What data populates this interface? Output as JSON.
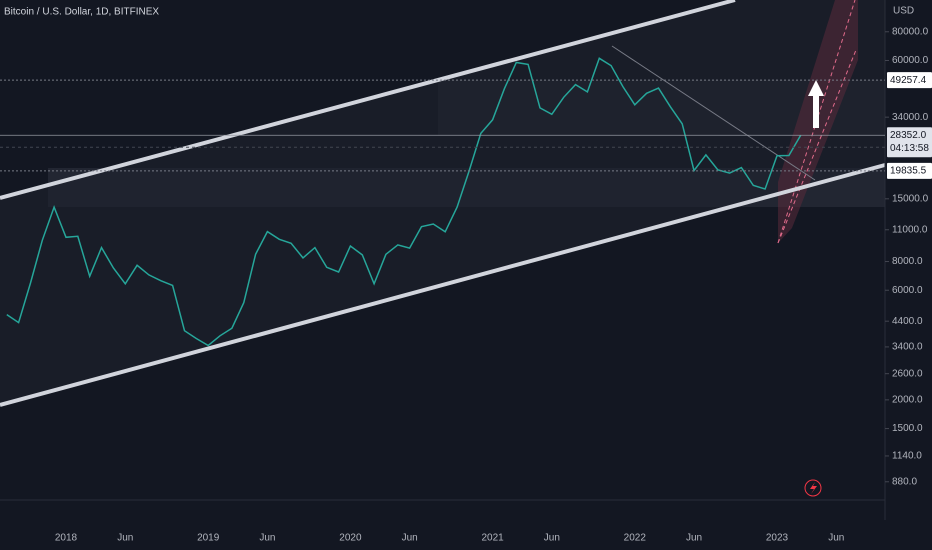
{
  "chart_data": {
    "type": "line",
    "title": "Bitcoin / U.S. Dollar, 1D, BITFINEX",
    "unit": "USD",
    "log_scale": true,
    "grid": false,
    "color": "#26a69a",
    "categories": [
      null,
      null,
      null,
      null,
      null,
      "2018",
      null,
      null,
      null,
      null,
      "Jun",
      null,
      null,
      null,
      null,
      null,
      null,
      "2019",
      null,
      null,
      null,
      null,
      "Jun",
      null,
      null,
      null,
      null,
      null,
      null,
      "2020",
      null,
      null,
      null,
      null,
      "Jun",
      null,
      null,
      null,
      null,
      null,
      null,
      "2021",
      null,
      null,
      null,
      null,
      "Jun",
      null,
      null,
      null,
      null,
      null,
      null,
      "2022",
      null,
      null,
      null,
      null,
      "Jun",
      null,
      null,
      null,
      null,
      null,
      null,
      "2023",
      null,
      null,
      null,
      null,
      "Jun"
    ],
    "values": [
      4700,
      4340,
      6450,
      9900,
      13800,
      10200,
      10300,
      6900,
      9200,
      7500,
      6400,
      7700,
      7000,
      6600,
      6300,
      4000,
      3700,
      3450,
      3800,
      4100,
      5300,
      8600,
      10800,
      10000,
      9600,
      8300,
      9200,
      7550,
      7200,
      9350,
      8550,
      6400,
      8600,
      9450,
      9150,
      11350,
      11650,
      10780,
      13800,
      19700,
      28900,
      33100,
      45200,
      58800,
      57700,
      37300,
      35000,
      41500,
      47100,
      43800,
      61300,
      57000,
      46200,
      38500,
      43200,
      45500,
      37700,
      31800,
      19900,
      23300,
      20050,
      19400,
      20500,
      17150,
      16550,
      23100,
      23150,
      28352,
      null,
      null,
      null
    ],
    "ylim": [
      600,
      110000
    ],
    "yticks": [
      {
        "value": 80000,
        "label": "80000.0"
      },
      {
        "value": 60000,
        "label": "60000.0"
      },
      {
        "value": 34000,
        "label": "34000.0"
      },
      {
        "value": 15000,
        "label": "15000.0"
      },
      {
        "value": 11000,
        "label": "11000.0"
      },
      {
        "value": 8000,
        "label": "8000.0"
      },
      {
        "value": 6000,
        "label": "6000.0"
      },
      {
        "value": 4400,
        "label": "4400.0"
      },
      {
        "value": 3400,
        "label": "3400.0"
      },
      {
        "value": 2600,
        "label": "2600.0"
      },
      {
        "value": 2000,
        "label": "2000.0"
      },
      {
        "value": 1500,
        "label": "1500.0"
      },
      {
        "value": 1140,
        "label": "1140.0"
      },
      {
        "value": 880,
        "label": "880.0"
      }
    ],
    "price_lines": [
      {
        "value": 49257.4,
        "label": "49257.4"
      },
      {
        "value": 19835.5,
        "label": "19835.5"
      }
    ],
    "last_price": {
      "value": 28352,
      "label": "28352.0",
      "countdown": "04:13:58"
    }
  }
}
